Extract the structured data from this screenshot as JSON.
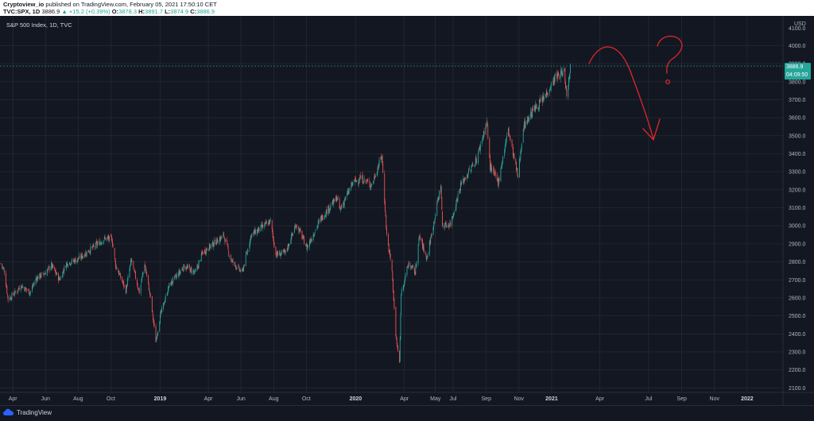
{
  "header": {
    "publisher": "Cryptoview_io",
    "published_text": "published on TradingView.com, February 05, 2021 17:50:10 CET",
    "symbol": "TVC:SPX, 1D",
    "last": "3886.9",
    "change": "▲ +15.2 (+0.39%)",
    "o_label": "O:",
    "o_value": "3878.3",
    "h_label": "H:",
    "h_value": "3891.7",
    "l_label": "L:",
    "l_value": "3874.9",
    "c_label": "C:",
    "c_value": "3886.9"
  },
  "footer": {
    "brand": "TradingView"
  },
  "colors": {
    "background": "#131722",
    "grid": "#2a2e39",
    "up": "#26a69a",
    "down": "#ef5350",
    "text": "#b2b5be",
    "annotation": "#e0262b",
    "price_label_bg": "#26a69a"
  },
  "chart_data": {
    "type": "candlestick",
    "title": "S&P 500 Index, 1D, TVC",
    "currency_label": "USD",
    "ylim": [
      2075,
      4165
    ],
    "y_ticks": [
      2100,
      2200,
      2300,
      2400,
      2500,
      2600,
      2700,
      2800,
      2900,
      3000,
      3100,
      3200,
      3300,
      3400,
      3500,
      3600,
      3700,
      3800,
      3900,
      4000
    ],
    "top_tick_label": "4100.0",
    "xlim": [
      "2018-03-08",
      "2022-03-09"
    ],
    "x_ticks": [
      {
        "date": "2018-04-01",
        "label": "Apr",
        "bold": false
      },
      {
        "date": "2018-06-01",
        "label": "Jun",
        "bold": false
      },
      {
        "date": "2018-08-01",
        "label": "Aug",
        "bold": false
      },
      {
        "date": "2018-10-01",
        "label": "Oct",
        "bold": false
      },
      {
        "date": "2019-01-01",
        "label": "2019",
        "bold": true
      },
      {
        "date": "2019-04-01",
        "label": "Apr",
        "bold": false
      },
      {
        "date": "2019-06-01",
        "label": "Jun",
        "bold": false
      },
      {
        "date": "2019-08-01",
        "label": "Aug",
        "bold": false
      },
      {
        "date": "2019-10-01",
        "label": "Oct",
        "bold": false
      },
      {
        "date": "2020-01-01",
        "label": "2020",
        "bold": true
      },
      {
        "date": "2020-04-01",
        "label": "Apr",
        "bold": false
      },
      {
        "date": "2020-05-29",
        "label": "May",
        "bold": false
      },
      {
        "date": "2020-07-01",
        "label": "Jul",
        "bold": false
      },
      {
        "date": "2020-09-01",
        "label": "Sep",
        "bold": false
      },
      {
        "date": "2020-11-01",
        "label": "Nov",
        "bold": false
      },
      {
        "date": "2021-01-01",
        "label": "2021",
        "bold": true
      },
      {
        "date": "2021-04-01",
        "label": "Apr",
        "bold": false
      },
      {
        "date": "2021-07-01",
        "label": "Jul",
        "bold": false
      },
      {
        "date": "2021-09-01",
        "label": "Sep",
        "bold": false
      },
      {
        "date": "2021-11-01",
        "label": "Nov",
        "bold": false
      },
      {
        "date": "2022-01-01",
        "label": "2022",
        "bold": true
      }
    ],
    "series": [
      {
        "name": "S&P 500 Index",
        "points": [
          [
            "2018-03-09",
            2790
          ],
          [
            "2018-03-16",
            2750
          ],
          [
            "2018-03-23",
            2590
          ],
          [
            "2018-04-02",
            2620
          ],
          [
            "2018-04-09",
            2640
          ],
          [
            "2018-04-16",
            2670
          ],
          [
            "2018-05-03",
            2630
          ],
          [
            "2018-05-15",
            2710
          ],
          [
            "2018-06-01",
            2740
          ],
          [
            "2018-06-12",
            2780
          ],
          [
            "2018-06-27",
            2700
          ],
          [
            "2018-07-10",
            2790
          ],
          [
            "2018-08-01",
            2815
          ],
          [
            "2018-08-20",
            2860
          ],
          [
            "2018-09-20",
            2930
          ],
          [
            "2018-10-03",
            2925
          ],
          [
            "2018-10-10",
            2780
          ],
          [
            "2018-10-29",
            2640
          ],
          [
            "2018-11-08",
            2810
          ],
          [
            "2018-11-23",
            2630
          ],
          [
            "2018-12-03",
            2790
          ],
          [
            "2018-12-14",
            2600
          ],
          [
            "2018-12-24",
            2360
          ],
          [
            "2019-01-02",
            2510
          ],
          [
            "2019-01-18",
            2670
          ],
          [
            "2019-02-15",
            2775
          ],
          [
            "2019-03-08",
            2740
          ],
          [
            "2019-03-21",
            2850
          ],
          [
            "2019-04-12",
            2905
          ],
          [
            "2019-04-30",
            2945
          ],
          [
            "2019-05-13",
            2810
          ],
          [
            "2019-06-03",
            2740
          ],
          [
            "2019-06-20",
            2950
          ],
          [
            "2019-07-26",
            3025
          ],
          [
            "2019-08-05",
            2840
          ],
          [
            "2019-08-23",
            2850
          ],
          [
            "2019-09-12",
            3010
          ],
          [
            "2019-10-02",
            2880
          ],
          [
            "2019-10-28",
            3040
          ],
          [
            "2019-11-27",
            3155
          ],
          [
            "2019-12-03",
            3090
          ],
          [
            "2019-12-27",
            3240
          ],
          [
            "2020-01-10",
            3265
          ],
          [
            "2020-01-31",
            3225
          ],
          [
            "2020-02-19",
            3390
          ],
          [
            "2020-02-28",
            2950
          ],
          [
            "2020-03-09",
            2750
          ],
          [
            "2020-03-16",
            2385
          ],
          [
            "2020-03-23",
            2240
          ],
          [
            "2020-03-26",
            2630
          ],
          [
            "2020-04-09",
            2790
          ],
          [
            "2020-04-21",
            2740
          ],
          [
            "2020-04-29",
            2940
          ],
          [
            "2020-05-13",
            2820
          ],
          [
            "2020-05-27",
            3035
          ],
          [
            "2020-06-08",
            3230
          ],
          [
            "2020-06-11",
            3000
          ],
          [
            "2020-06-26",
            3010
          ],
          [
            "2020-07-15",
            3225
          ],
          [
            "2020-08-14",
            3370
          ],
          [
            "2020-09-02",
            3580
          ],
          [
            "2020-09-08",
            3330
          ],
          [
            "2020-09-23",
            3240
          ],
          [
            "2020-10-12",
            3535
          ],
          [
            "2020-10-30",
            3270
          ],
          [
            "2020-11-09",
            3550
          ],
          [
            "2020-11-27",
            3640
          ],
          [
            "2020-12-16",
            3700
          ],
          [
            "2021-01-08",
            3825
          ],
          [
            "2021-01-25",
            3855
          ],
          [
            "2021-01-29",
            3715
          ],
          [
            "2021-02-05",
            3887
          ]
        ]
      }
    ],
    "last_price_label": "3886.9",
    "countdown_label": "04:09:50",
    "annotations": [
      "?"
    ]
  }
}
